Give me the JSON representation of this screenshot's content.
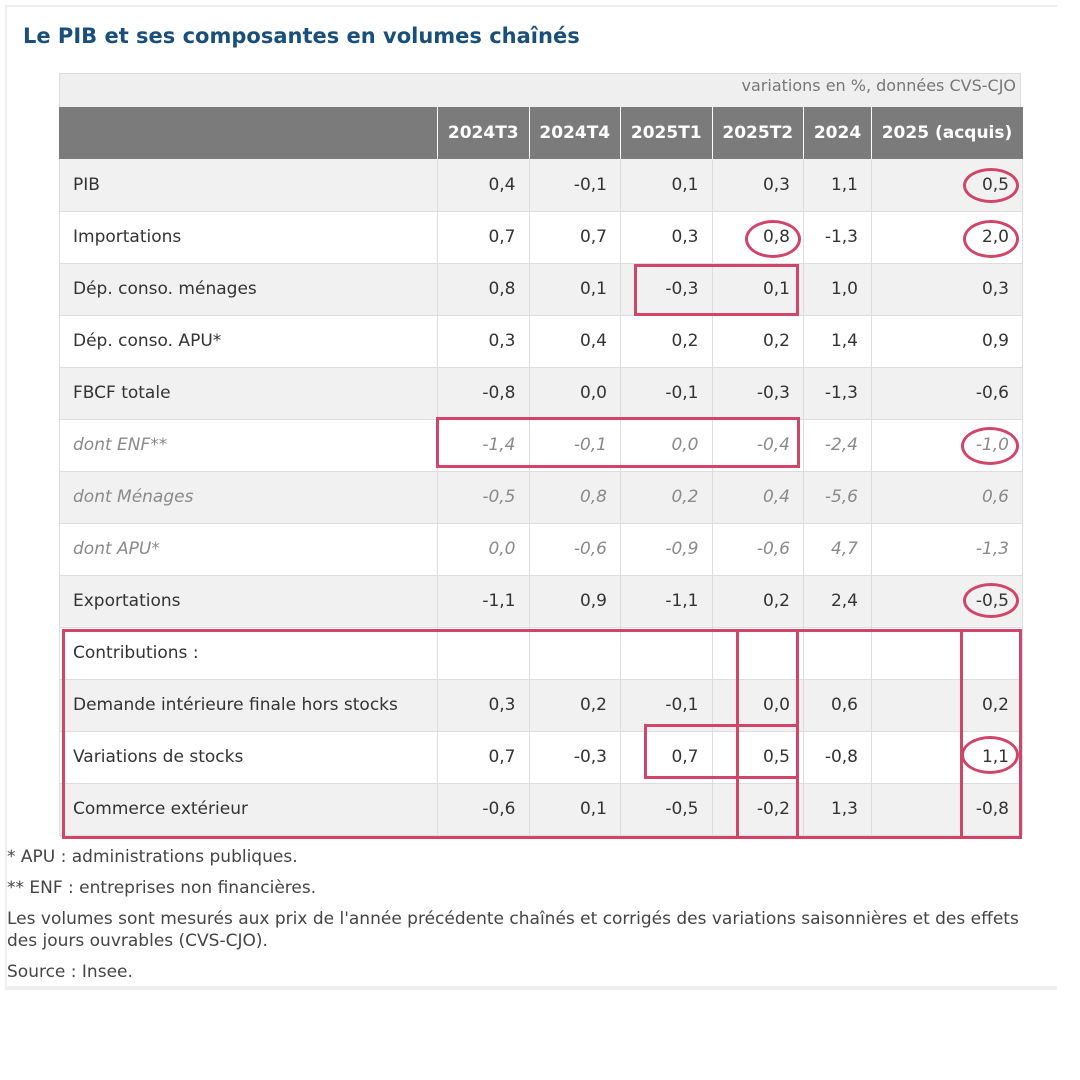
{
  "title": "Le PIB et ses composantes en volumes chaînés",
  "units_note": "variations en %, données CVS-CJO",
  "table": {
    "headers": [
      "",
      "2024T3",
      "2024T4",
      "2025T1",
      "2025T2",
      "2024",
      "2025 (acquis)"
    ],
    "rows": [
      {
        "label": "PIB",
        "values": [
          "0,4",
          "-0,1",
          "0,1",
          "0,3",
          "1,1",
          "0,5"
        ],
        "style": "normal"
      },
      {
        "label": "Importations",
        "values": [
          "0,7",
          "0,7",
          "0,3",
          "0,8",
          "-1,3",
          "2,0"
        ],
        "style": "normal"
      },
      {
        "label": "Dép. conso. ménages",
        "values": [
          "0,8",
          "0,1",
          "-0,3",
          "0,1",
          "1,0",
          "0,3"
        ],
        "style": "normal"
      },
      {
        "label": "Dép. conso. APU*",
        "values": [
          "0,3",
          "0,4",
          "0,2",
          "0,2",
          "1,4",
          "0,9"
        ],
        "style": "normal"
      },
      {
        "label": "FBCF totale",
        "values": [
          "-0,8",
          "0,0",
          "-0,1",
          "-0,3",
          "-1,3",
          "-0,6"
        ],
        "style": "normal"
      },
      {
        "label": "dont ENF**",
        "values": [
          "-1,4",
          "-0,1",
          "0,0",
          "-0,4",
          "-2,4",
          "-1,0"
        ],
        "style": "italic"
      },
      {
        "label": "dont Ménages",
        "values": [
          "-0,5",
          "0,8",
          "0,2",
          "0,4",
          "-5,6",
          "0,6"
        ],
        "style": "italic"
      },
      {
        "label": "dont APU*",
        "values": [
          "0,0",
          "-0,6",
          "-0,9",
          "-0,6",
          "4,7",
          "-1,3"
        ],
        "style": "italic"
      },
      {
        "label": "Exportations",
        "values": [
          "-1,1",
          "0,9",
          "-1,1",
          "0,2",
          "2,4",
          "-0,5"
        ],
        "style": "normal"
      },
      {
        "label": "Contributions :",
        "values": [
          "",
          "",
          "",
          "",
          "",
          ""
        ],
        "style": "normal"
      },
      {
        "label": "Demande intérieure finale hors stocks",
        "values": [
          "0,3",
          "0,2",
          "-0,1",
          "0,0",
          "0,6",
          "0,2"
        ],
        "style": "normal"
      },
      {
        "label": "Variations de stocks",
        "values": [
          "0,7",
          "-0,3",
          "0,7",
          "0,5",
          "-0,8",
          "1,1"
        ],
        "style": "normal"
      },
      {
        "label": "Commerce extérieur",
        "values": [
          "-0,6",
          "0,1",
          "-0,5",
          "-0,2",
          "1,3",
          "-0,8"
        ],
        "style": "normal"
      }
    ]
  },
  "annotation_color": "#d0466b",
  "notes": [
    "* APU : administrations publiques.",
    "** ENF : entreprises non financières.",
    "Les volumes sont mesurés aux prix de l'année précédente chaînés et corrigés des variations saisonnières et des effets des jours ouvrables (CVS-CJO).",
    "Source : Insee."
  ]
}
